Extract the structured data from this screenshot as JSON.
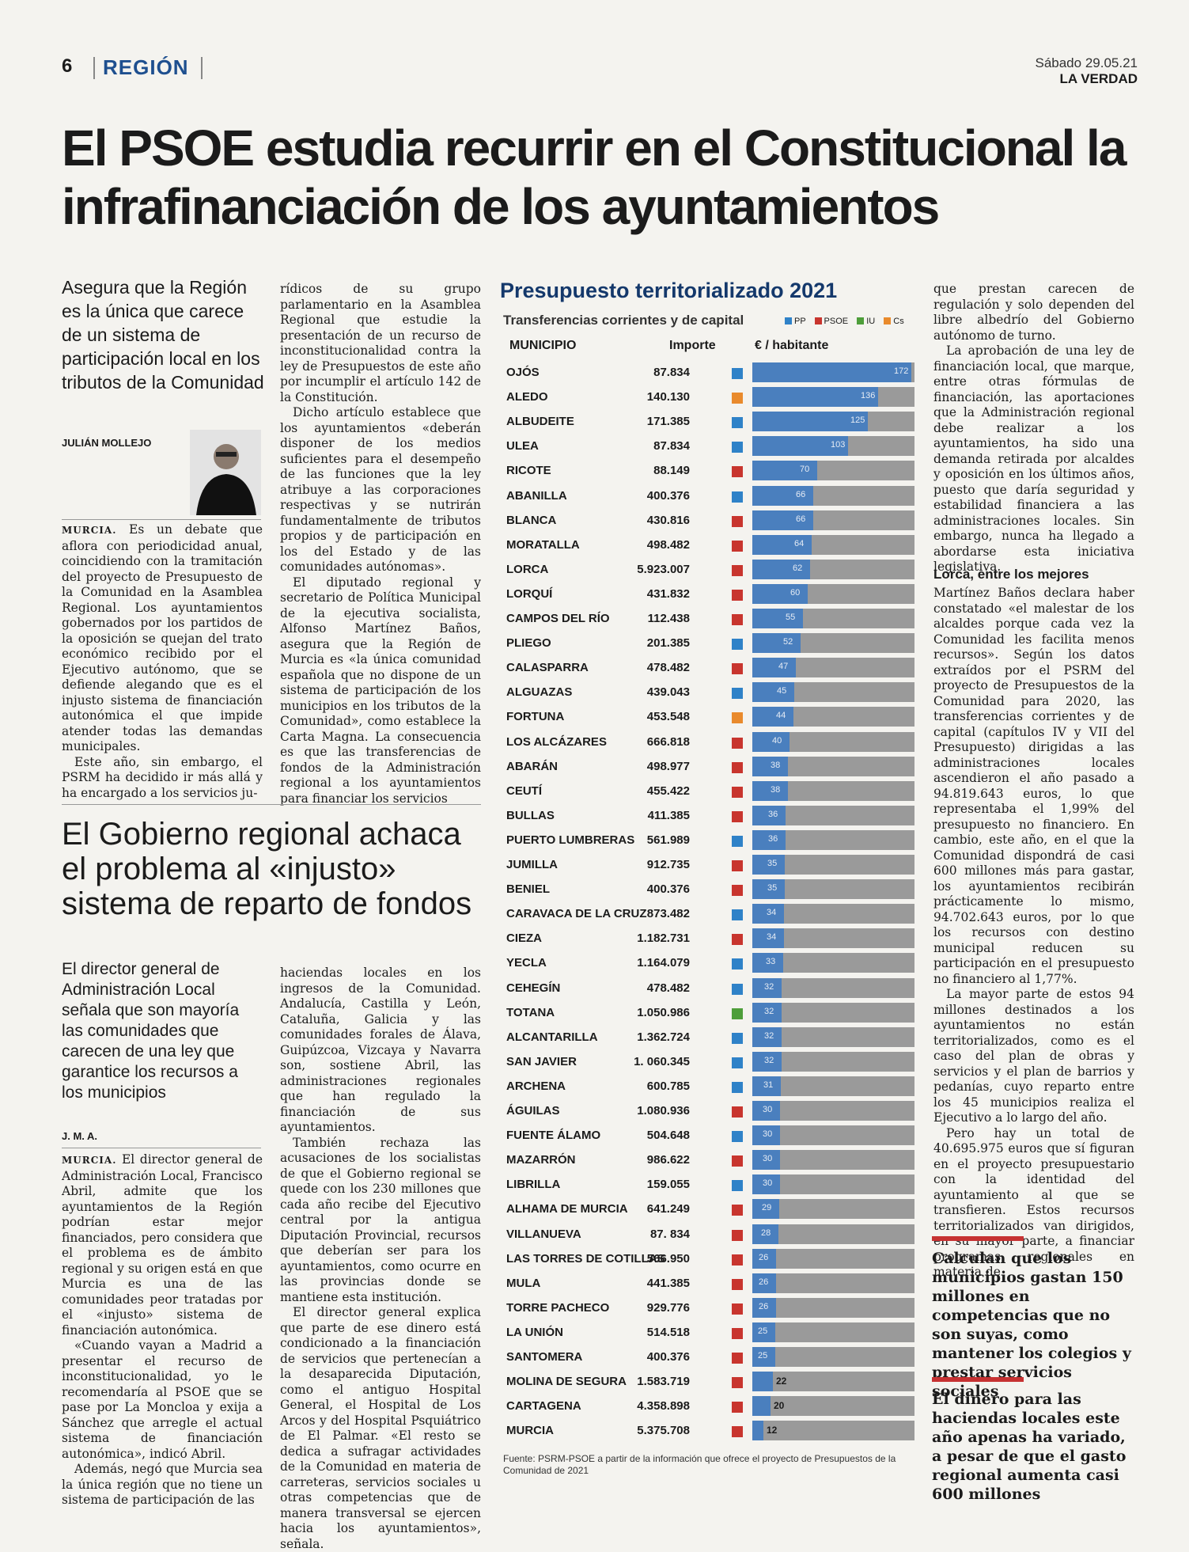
{
  "header": {
    "page_number": "6",
    "section": "REGIÓN",
    "date": "Sábado 29.05.21",
    "newspaper": "LA VERDAD"
  },
  "article1": {
    "headline": "El PSOE estudia recurrir en el Constitucional la infrafinanciación de los ayuntamientos",
    "lead": "Asegura que la Región es la única que carece de un sistema de participación local en los tributos de la Comunidad",
    "byline": "JULIÁN MOLLEJO",
    "col1_label": "MURCIA.",
    "col1_p1": "Es un debate que aflora con periodicidad anual, coincidiendo con la tramitación del proyecto de Presupuesto de la Comunidad en la Asamblea Regional. Los ayuntamientos gobernados por los partidos de la oposición se quejan del trato económico recibido por el Ejecutivo autónomo, que se defiende alegando que es el injusto sistema de financiación autonómica el que impide atender todas las demandas municipales.",
    "col1_p2": "Este año, sin embargo, el PSRM ha decidido ir más allá y ha encargado a los servicios ju-",
    "col2_p1": "rídicos de su grupo parlamentario en la Asamblea Regional que estudie la presentación de un recurso de inconstitucionalidad contra la ley de Presupuestos de este año por incumplir el artículo 142 de la Constitución.",
    "col2_p2": "Dicho artículo establece que los ayuntamientos «deberán disponer de los medios suficientes para el desempeño de las funciones que la ley atribuye a las corporaciones respectivas y se nutrirán fundamentalmente de tributos propios y de participación en los del Estado y de las comunidades autónomas».",
    "col2_p3": "El diputado regional y secretario de Política Municipal de la ejecutiva socialista, Alfonso Martínez Baños, asegura que la Región de Murcia es «la única comunidad española que no dispone de un sistema de participación de los municipios en los tributos de la Comunidad», como establece la Carta Magna. La consecuencia es que las transferencias de fondos de la Administración regional a los ayuntamientos para financiar los servicios",
    "col4_p1": "que prestan carecen de regulación y solo dependen del libre albedrío del Gobierno autónomo de turno.",
    "col4_p2": "La aprobación de una ley de financiación local, que marque, entre otras fórmulas de financiación, las aportaciones que la Administración regional debe realizar a los ayuntamientos, ha sido una demanda retirada por alcaldes y oposición en los últimos años, puesto que daría seguridad y estabilidad financiera a las administraciones locales. Sin embargo, nunca ha llegado a abordarse esta iniciativa legislativa.",
    "subheading": "Lorca, entre los mejores",
    "col4_p3": "Martínez Baños declara haber constatado «el malestar de los alcaldes porque cada vez la Comunidad les facilita menos recursos». Según los datos extraídos por el PSRM del proyecto de Presupuestos de la Comunidad para 2020, las transferencias corrientes y de capital (capítulos IV y VII del Presupuesto) dirigidas a las administraciones locales ascendieron el año pasado a 94.819.643 euros, lo que representaba el 1,99% del presupuesto no financiero. En cambio, este año, en el que la Comunidad dispondrá de casi 600 millones más para gastar, los ayuntamientos recibirán prácticamente lo mismo, 94.702.643 euros, por lo que los recursos con destino municipal reducen su participación en el presupuesto no financiero al 1,77%.",
    "col4_p4": "La mayor parte de estos 94 millones destinados a los ayuntamientos no están territorializados, como es el caso del plan de obras y servicios y el plan de barrios y pedanías, cuyo reparto entre los 45 municipios realiza el Ejecutivo a lo largo del año.",
    "col4_p5": "Pero hay un total de 40.695.975 euros que sí figuran en el proyecto presupuestario con la identidad del ayuntamiento al que se transfieren. Estos recursos territorializados van dirigidos, en su mayor parte, a financiar programas regionales en materia de"
  },
  "article2": {
    "headline": "El Gobierno regional achaca el problema al «injusto» sistema de reparto de fondos",
    "lead": "El director general de Administración Local señala que son mayoría las comunidades que carecen de una ley que garantice los recursos a los municipios",
    "byline": "J. M. A.",
    "col1_label": "MURCIA.",
    "col1_p1": "El director general de Administración Local, Francisco Abril, admite que los ayuntamientos de la Región podrían estar mejor financiados, pero considera que el problema es de ámbito regional y su origen está en que Murcia es una de las comunidades peor tratadas por el «injusto» sistema de financiación autonómica.",
    "col1_p2": "«Cuando vayan a Madrid a presentar el recurso de inconstitucionalidad, yo le recomendaría al PSOE que se pase por La Moncloa y exija a Sánchez que arregle el actual sistema de financiación autonómica», indicó Abril.",
    "col1_p3": "Además, negó que Murcia sea la única región que no tiene un sistema de participación de las",
    "col2_p1": "haciendas locales en los ingresos de la Comunidad. Andalucía, Castilla y León, Cataluña, Galicia y las comunidades forales de Álava, Guipúzcoa, Vizcaya y Navarra son, sostiene Abril, las administraciones regionales que han regulado la financiación de sus ayuntamientos.",
    "col2_p2": "También rechaza las acusaciones de los socialistas de que el Gobierno regional se quede con los 230 millones que cada año recibe del Ejecutivo central por la antigua Diputación Provincial, recursos que deberían ser para los ayuntamientos, como ocurre en las provincias donde se mantiene esta institución.",
    "col2_p3": "El director general explica que parte de ese dinero está condicionado a la financiación de servicios que pertenecían a la desaparecida Diputación, como el antiguo Hospital General, el Hospital de Los Arcos y del Hospital Psquiátrico de El Palmar. «El resto se dedica a sufragar actividades de la Comunidad en materia de carreteras, servicios sociales u otras competencias que de manera transversal se ejercen hacia los ayuntamientos», señala."
  },
  "highlights": [
    "Calculan que los municipios gastan 150 millones en competencias que no son suyas, como mantener los colegios y prestar servicios sociales",
    "El dinero para las haciendas locales este año apenas ha variado, a pesar de que el gasto regional aumenta casi 600 millones"
  ],
  "colors": {
    "PP": "#2f82c8",
    "PSOE": "#c8352e",
    "IU": "#4e9e3a",
    "Cs": "#e98a2c",
    "bar": "#4a7fbe",
    "track": "#9a9a9a"
  },
  "chart_data": {
    "type": "bar",
    "title": "Presupuesto territorializado 2021",
    "subtitle": "Transferencias corrientes y de capital",
    "legend": [
      "PP",
      "PSOE",
      "IU",
      "Cs"
    ],
    "columns": [
      "MUNICIPIO",
      "Importe",
      "€ / habitante"
    ],
    "xlim": [
      0,
      175
    ],
    "source": "Fuente: PSRM-PSOE a partir de la información que ofrece el proyecto de Presupuestos de la Comunidad de 2021",
    "rows": [
      {
        "municipio": "OJÓS",
        "importe": "87.834",
        "party": "PP",
        "per_capita": 172
      },
      {
        "municipio": "ALEDO",
        "importe": "140.130",
        "party": "Cs",
        "per_capita": 136
      },
      {
        "municipio": "ALBUDEITE",
        "importe": "171.385",
        "party": "PP",
        "per_capita": 125
      },
      {
        "municipio": "ULEA",
        "importe": "87.834",
        "party": "PP",
        "per_capita": 103
      },
      {
        "municipio": "RICOTE",
        "importe": "88.149",
        "party": "PSOE",
        "per_capita": 70
      },
      {
        "municipio": "ABANILLA",
        "importe": "400.376",
        "party": "PP",
        "per_capita": 66
      },
      {
        "municipio": "BLANCA",
        "importe": "430.816",
        "party": "PSOE",
        "per_capita": 66
      },
      {
        "municipio": "MORATALLA",
        "importe": "498.482",
        "party": "PSOE",
        "per_capita": 64
      },
      {
        "municipio": "LORCA",
        "importe": "5.923.007",
        "party": "PSOE",
        "per_capita": 62
      },
      {
        "municipio": "LORQUÍ",
        "importe": "431.832",
        "party": "PSOE",
        "per_capita": 60
      },
      {
        "municipio": "CAMPOS DEL RÍO",
        "importe": "112.438",
        "party": "PSOE",
        "per_capita": 55
      },
      {
        "municipio": "PLIEGO",
        "importe": "201.385",
        "party": "PP",
        "per_capita": 52
      },
      {
        "municipio": "CALASPARRA",
        "importe": "478.482",
        "party": "PSOE",
        "per_capita": 47
      },
      {
        "municipio": "ALGUAZAS",
        "importe": "439.043",
        "party": "PP",
        "per_capita": 45
      },
      {
        "municipio": "FORTUNA",
        "importe": "453.548",
        "party": "Cs",
        "per_capita": 44
      },
      {
        "municipio": "LOS ALCÁZARES",
        "importe": "666.818",
        "party": "PSOE",
        "per_capita": 40
      },
      {
        "municipio": "ABARÁN",
        "importe": "498.977",
        "party": "PSOE",
        "per_capita": 38
      },
      {
        "municipio": "CEUTÍ",
        "importe": "455.422",
        "party": "PSOE",
        "per_capita": 38
      },
      {
        "municipio": "BULLAS",
        "importe": "411.385",
        "party": "PSOE",
        "per_capita": 36
      },
      {
        "municipio": "PUERTO LUMBRERAS",
        "importe": "561.989",
        "party": "PP",
        "per_capita": 36
      },
      {
        "municipio": "JUMILLA",
        "importe": "912.735",
        "party": "PSOE",
        "per_capita": 35
      },
      {
        "municipio": "BENIEL",
        "importe": "400.376",
        "party": "PSOE",
        "per_capita": 35
      },
      {
        "municipio": "CARAVACA DE LA CRUZ",
        "importe": "873.482",
        "party": "PP",
        "per_capita": 34
      },
      {
        "municipio": "CIEZA",
        "importe": "1.182.731",
        "party": "PSOE",
        "per_capita": 34
      },
      {
        "municipio": "YECLA",
        "importe": "1.164.079",
        "party": "PP",
        "per_capita": 33
      },
      {
        "municipio": "CEHEGÍN",
        "importe": "478.482",
        "party": "PP",
        "per_capita": 32
      },
      {
        "municipio": "TOTANA",
        "importe": "1.050.986",
        "party": "IU",
        "per_capita": 32
      },
      {
        "municipio": "ALCANTARILLA",
        "importe": "1.362.724",
        "party": "PP",
        "per_capita": 32
      },
      {
        "municipio": "SAN JAVIER",
        "importe": "1. 060.345",
        "party": "PP",
        "per_capita": 32
      },
      {
        "municipio": "ARCHENA",
        "importe": "600.785",
        "party": "PP",
        "per_capita": 31
      },
      {
        "municipio": "ÁGUILAS",
        "importe": "1.080.936",
        "party": "PSOE",
        "per_capita": 30
      },
      {
        "municipio": "FUENTE ÁLAMO",
        "importe": "504.648",
        "party": "PP",
        "per_capita": 30
      },
      {
        "municipio": "MAZARRÓN",
        "importe": "986.622",
        "party": "PSOE",
        "per_capita": 30
      },
      {
        "municipio": "LIBRILLA",
        "importe": "159.055",
        "party": "PP",
        "per_capita": 30
      },
      {
        "municipio": "ALHAMA DE MURCIA",
        "importe": "641.249",
        "party": "PSOE",
        "per_capita": 29
      },
      {
        "municipio": "VILLANUEVA",
        "importe": "87. 834",
        "party": "PSOE",
        "per_capita": 28
      },
      {
        "municipio": "LAS TORRES DE COTILLAS",
        "importe": "566.950",
        "party": "PSOE",
        "per_capita": 26
      },
      {
        "municipio": "MULA",
        "importe": "441.385",
        "party": "PSOE",
        "per_capita": 26
      },
      {
        "municipio": "TORRE PACHECO",
        "importe": "929.776",
        "party": "PSOE",
        "per_capita": 26
      },
      {
        "municipio": "LA UNIÓN",
        "importe": "514.518",
        "party": "PSOE",
        "per_capita": 25
      },
      {
        "municipio": "SANTOMERA",
        "importe": "400.376",
        "party": "PSOE",
        "per_capita": 25
      },
      {
        "municipio": "MOLINA DE SEGURA",
        "importe": "1.583.719",
        "party": "PSOE",
        "per_capita": 22
      },
      {
        "municipio": "CARTAGENA",
        "importe": "4.358.898",
        "party": "PSOE",
        "per_capita": 20
      },
      {
        "municipio": "MURCIA",
        "importe": "5.375.708",
        "party": "PSOE",
        "per_capita": 12
      }
    ]
  }
}
